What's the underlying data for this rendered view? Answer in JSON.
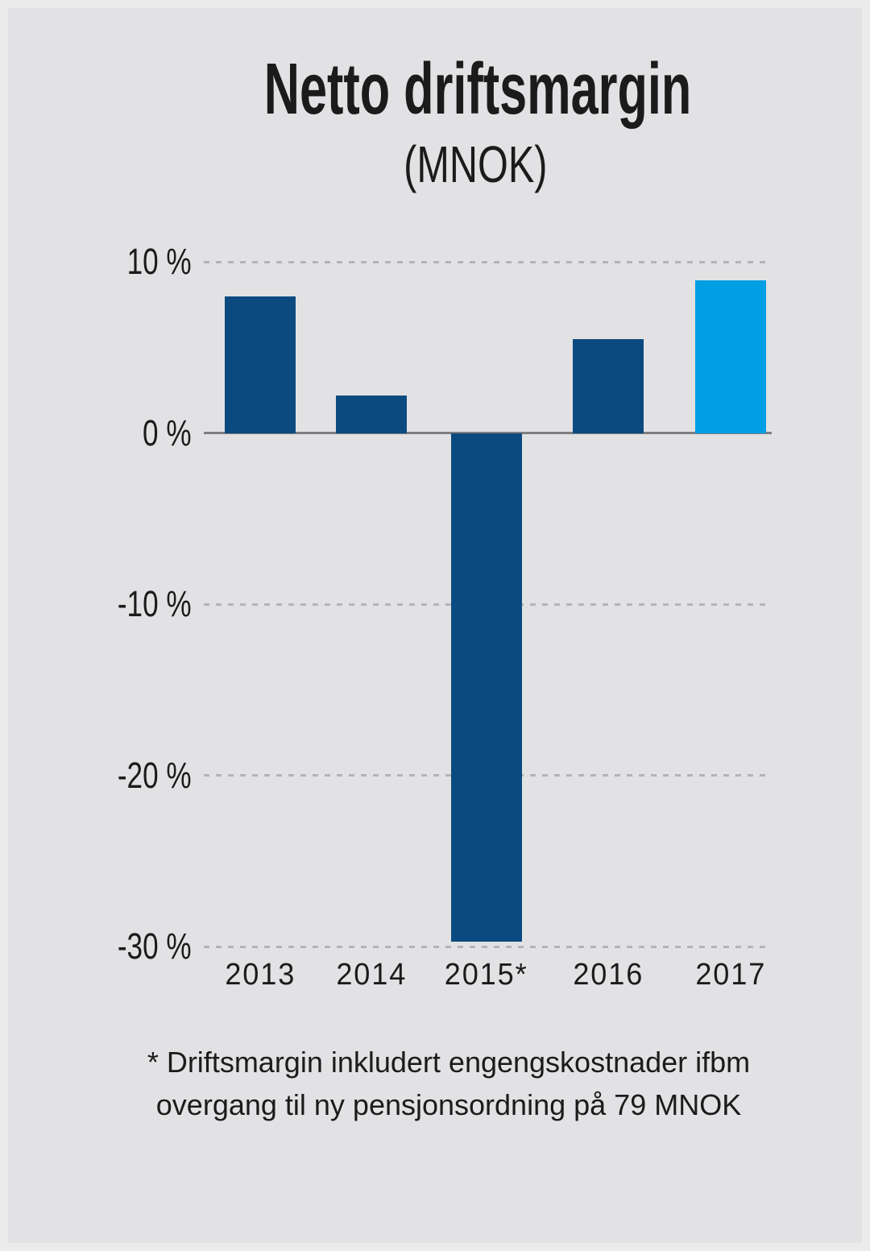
{
  "title": "Netto driftsmargin",
  "subtitle": "(MNOK)",
  "footnote": {
    "line1": "* Driftsmargin inkludert engengskostnader ifbm",
    "line2": "overgang til ny pensjonsordning på 79 MNOK"
  },
  "colors": {
    "background": "#e2e2e4",
    "text": "#1b1b1b",
    "bar_default": "#0b4a80",
    "bar_highlight": "#009ee3",
    "gridline": "#b4b4b7",
    "zero_line": "#7e7e80"
  },
  "chart_data": {
    "type": "bar",
    "title": "Netto driftsmargin",
    "subtitle": "(MNOK)",
    "categories": [
      "2013",
      "2014",
      "2015*",
      "2016",
      "2017"
    ],
    "values": [
      8.0,
      2.2,
      -29.7,
      5.5,
      8.9
    ],
    "value_unit": "%",
    "ylim": [
      -30,
      10
    ],
    "yticks": [
      10,
      0,
      -10,
      -20,
      -30
    ],
    "ytick_labels": [
      "10 %",
      "0 %",
      "-10 %",
      "-20 %",
      "-30 %"
    ],
    "grid": "horizontal-dashed",
    "legend": "none",
    "highlight_index": 4,
    "bar_colors": [
      "#0b4a80",
      "#0b4a80",
      "#0b4a80",
      "#0b4a80",
      "#009ee3"
    ],
    "footnote": "* Driftsmargin inkludert engengskostnader ifbm overgang til ny pensjonsordning på 79 MNOK"
  }
}
